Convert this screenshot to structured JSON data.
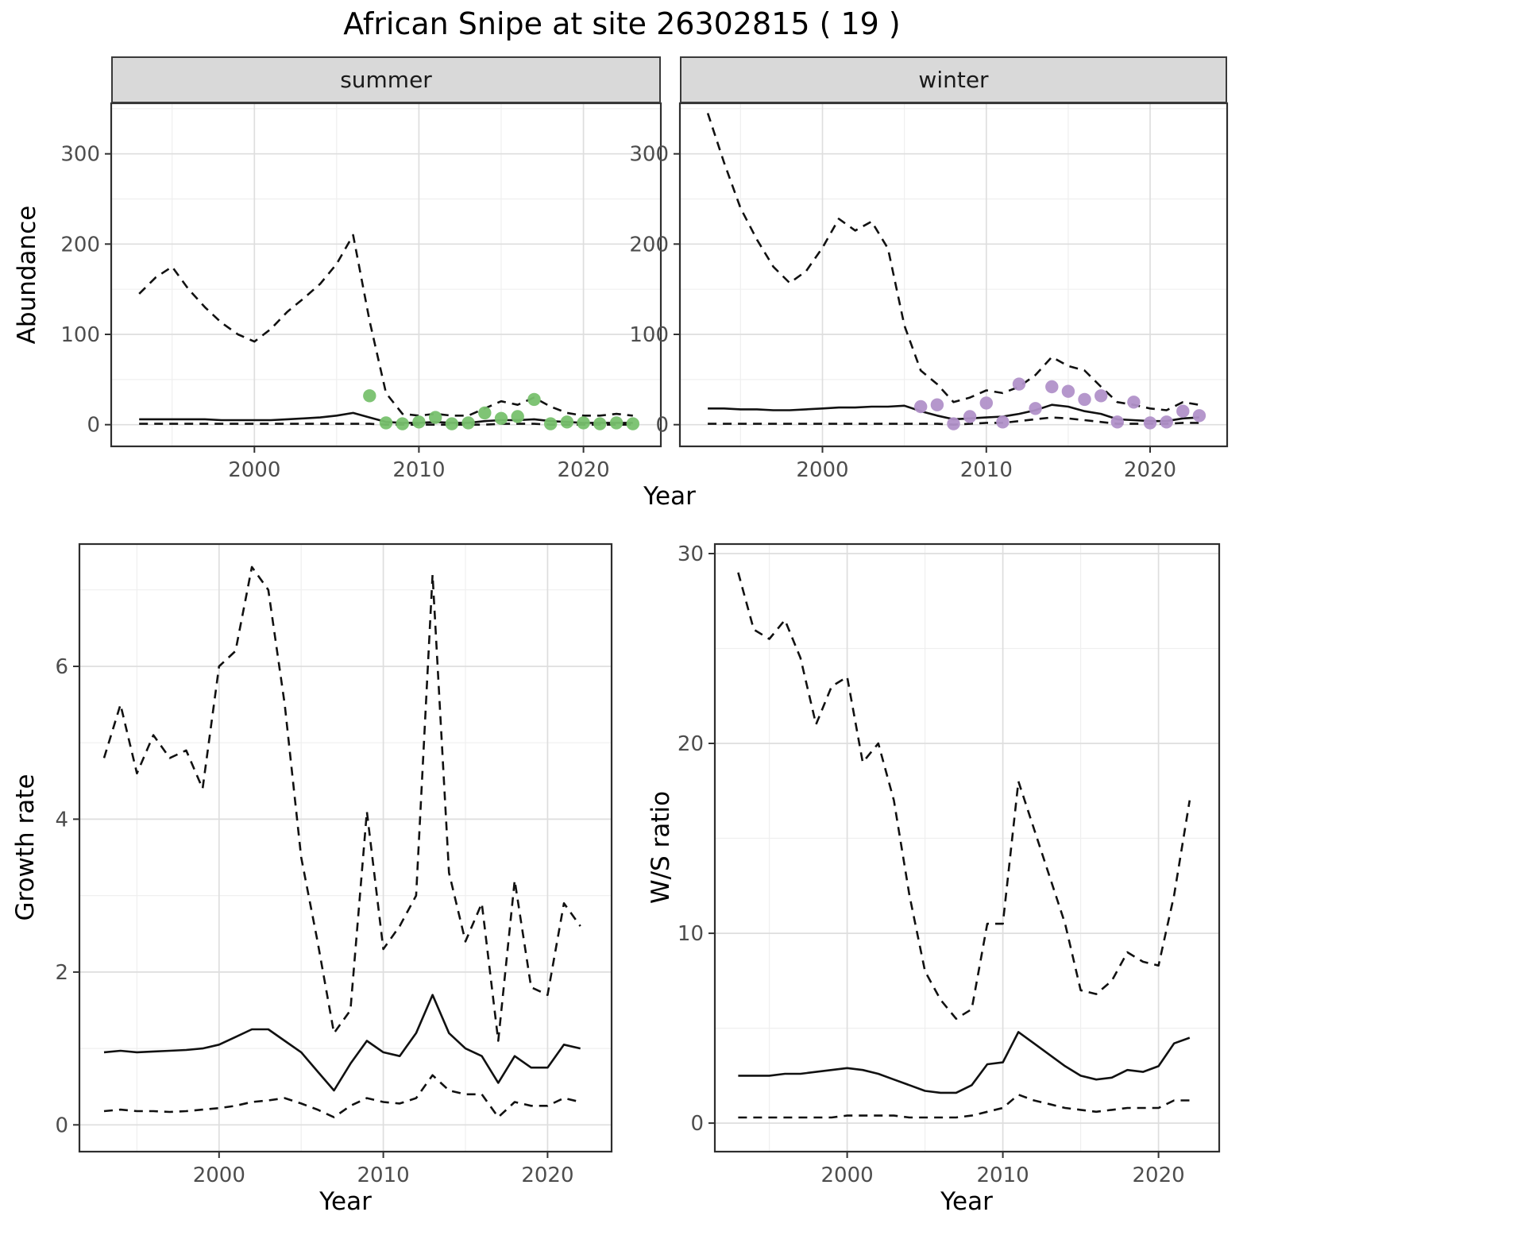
{
  "figure": {
    "title": "African Snipe at site 26302815 ( 19 )",
    "background": "#ffffff",
    "line_color": "#111111",
    "grid_major_color": "#dedede",
    "grid_minor_color": "#efefef",
    "panel_border": "#2e2e2e",
    "strip_bg": "#d9d9d9",
    "tick_color": "#333333"
  },
  "chart_data": [
    {
      "name": "abundance-summer",
      "type": "line",
      "facet_label": "summer",
      "xlabel": "Year",
      "ylabel": "Abundance",
      "xlim": [
        1991.3,
        2024.7
      ],
      "ylim": [
        -24,
        356
      ],
      "xticks": [
        2000,
        2010,
        2020
      ],
      "yticks": [
        0,
        100,
        200,
        300
      ],
      "grid": true,
      "years": [
        1993,
        1994,
        1995,
        1996,
        1997,
        1998,
        1999,
        2000,
        2001,
        2002,
        2003,
        2004,
        2005,
        2006,
        2007,
        2008,
        2009,
        2010,
        2011,
        2012,
        2013,
        2014,
        2015,
        2016,
        2017,
        2018,
        2019,
        2020,
        2021,
        2022,
        2023
      ],
      "series": [
        {
          "name": "upper-ci",
          "style": "dashed",
          "values": [
            145,
            163,
            175,
            150,
            130,
            113,
            100,
            92,
            106,
            125,
            140,
            156,
            178,
            210,
            115,
            35,
            12,
            10,
            12,
            10,
            10,
            18,
            26,
            22,
            30,
            20,
            13,
            10,
            10,
            12,
            10
          ]
        },
        {
          "name": "median",
          "style": "solid",
          "values": [
            6,
            6,
            6,
            6,
            6,
            5,
            5,
            5,
            5,
            6,
            7,
            8,
            10,
            13,
            8,
            3,
            2,
            2,
            3,
            2,
            2,
            4,
            5,
            5,
            6,
            4,
            3,
            2,
            2,
            2,
            2
          ]
        },
        {
          "name": "lower-ci",
          "style": "dashed",
          "values": [
            1,
            1,
            1,
            1,
            1,
            1,
            1,
            1,
            1,
            1,
            1,
            1,
            1,
            1,
            1,
            0,
            0,
            0,
            0,
            0,
            0,
            0,
            1,
            1,
            1,
            0,
            0,
            0,
            0,
            0,
            0
          ]
        }
      ],
      "points": {
        "name": "observed-summer",
        "color": "#78c16e",
        "years": [
          2007,
          2008,
          2009,
          2010,
          2011,
          2012,
          2013,
          2014,
          2015,
          2016,
          2017,
          2018,
          2019,
          2020,
          2021,
          2022,
          2023
        ],
        "values": [
          32,
          2,
          1,
          3,
          8,
          1,
          2,
          13,
          7,
          9,
          28,
          1,
          3,
          2,
          1,
          2,
          1
        ]
      }
    },
    {
      "name": "abundance-winter",
      "type": "line",
      "facet_label": "winter",
      "xlabel": "Year",
      "ylabel": "Abundance",
      "xlim": [
        1991.3,
        2024.7
      ],
      "ylim": [
        -24,
        356
      ],
      "xticks": [
        2000,
        2010,
        2020
      ],
      "yticks": [
        0,
        100,
        200,
        300
      ],
      "grid": true,
      "years": [
        1993,
        1994,
        1995,
        1996,
        1997,
        1998,
        1999,
        2000,
        2001,
        2002,
        2003,
        2004,
        2005,
        2006,
        2007,
        2008,
        2009,
        2010,
        2011,
        2012,
        2013,
        2014,
        2015,
        2016,
        2017,
        2018,
        2019,
        2020,
        2021,
        2022,
        2023
      ],
      "series": [
        {
          "name": "upper-ci",
          "style": "dashed",
          "values": [
            345,
            290,
            240,
            205,
            175,
            157,
            170,
            196,
            228,
            215,
            225,
            195,
            110,
            60,
            45,
            25,
            30,
            38,
            35,
            42,
            55,
            75,
            65,
            60,
            42,
            25,
            22,
            18,
            16,
            25,
            22
          ]
        },
        {
          "name": "median",
          "style": "solid",
          "values": [
            18,
            18,
            17,
            17,
            16,
            16,
            17,
            18,
            19,
            19,
            20,
            20,
            21,
            15,
            10,
            6,
            7,
            8,
            9,
            12,
            16,
            22,
            20,
            15,
            12,
            6,
            5,
            4,
            4,
            7,
            8
          ]
        },
        {
          "name": "lower-ci",
          "style": "dashed",
          "values": [
            1,
            1,
            1,
            1,
            1,
            1,
            1,
            1,
            1,
            1,
            1,
            1,
            1,
            1,
            1,
            0,
            1,
            2,
            2,
            4,
            6,
            8,
            7,
            5,
            3,
            1,
            1,
            1,
            1,
            2,
            2
          ]
        }
      ],
      "points": {
        "name": "observed-winter",
        "color": "#b191c9",
        "years": [
          2006,
          2007,
          2008,
          2009,
          2010,
          2011,
          2012,
          2013,
          2014,
          2015,
          2016,
          2017,
          2018,
          2019,
          2020,
          2021,
          2022,
          2023
        ],
        "values": [
          20,
          22,
          1,
          9,
          24,
          3,
          45,
          18,
          42,
          37,
          28,
          32,
          3,
          25,
          2,
          3,
          15,
          10
        ]
      }
    },
    {
      "name": "growth-rate",
      "type": "line",
      "facet_label": "",
      "xlabel": "Year",
      "ylabel": "Growth rate",
      "xlim": [
        1991.5,
        2023.9
      ],
      "ylim": [
        -0.35,
        7.6
      ],
      "xticks": [
        2000,
        2010,
        2020
      ],
      "yticks": [
        0,
        2,
        4,
        6
      ],
      "grid": true,
      "years": [
        1993,
        1994,
        1995,
        1996,
        1997,
        1998,
        1999,
        2000,
        2001,
        2002,
        2003,
        2004,
        2005,
        2006,
        2007,
        2008,
        2009,
        2010,
        2011,
        2012,
        2013,
        2014,
        2015,
        2016,
        2017,
        2018,
        2019,
        2020,
        2021,
        2022
      ],
      "series": [
        {
          "name": "upper-ci",
          "style": "dashed",
          "values": [
            4.8,
            5.5,
            4.6,
            5.1,
            4.8,
            4.9,
            4.4,
            6.0,
            6.2,
            7.3,
            7.0,
            5.5,
            3.5,
            2.4,
            1.2,
            1.5,
            4.1,
            2.3,
            2.6,
            3.0,
            7.2,
            3.3,
            2.4,
            2.9,
            1.1,
            3.2,
            1.8,
            1.7,
            2.9,
            2.6
          ]
        },
        {
          "name": "median",
          "style": "solid",
          "values": [
            0.95,
            0.97,
            0.95,
            0.96,
            0.97,
            0.98,
            1.0,
            1.05,
            1.15,
            1.25,
            1.25,
            1.1,
            0.95,
            0.7,
            0.45,
            0.8,
            1.1,
            0.95,
            0.9,
            1.2,
            1.7,
            1.2,
            1.0,
            0.9,
            0.55,
            0.9,
            0.75,
            0.75,
            1.05,
            1.0
          ]
        },
        {
          "name": "lower-ci",
          "style": "dashed",
          "values": [
            0.18,
            0.2,
            0.18,
            0.18,
            0.17,
            0.18,
            0.2,
            0.22,
            0.25,
            0.3,
            0.32,
            0.35,
            0.28,
            0.2,
            0.1,
            0.25,
            0.35,
            0.3,
            0.28,
            0.35,
            0.65,
            0.45,
            0.4,
            0.4,
            0.1,
            0.3,
            0.25,
            0.25,
            0.35,
            0.3
          ]
        }
      ],
      "points": null
    },
    {
      "name": "ws-ratio",
      "type": "line",
      "facet_label": "",
      "xlabel": "Year",
      "ylabel": "W/S ratio",
      "xlim": [
        1991.5,
        2023.9
      ],
      "ylim": [
        -1.5,
        30.5
      ],
      "xticks": [
        2000,
        2010,
        2020
      ],
      "yticks": [
        0,
        10,
        20,
        30
      ],
      "grid": true,
      "years": [
        1993,
        1994,
        1995,
        1996,
        1997,
        1998,
        1999,
        2000,
        2001,
        2002,
        2003,
        2004,
        2005,
        2006,
        2007,
        2008,
        2009,
        2010,
        2011,
        2012,
        2013,
        2014,
        2015,
        2016,
        2017,
        2018,
        2019,
        2020,
        2021,
        2022
      ],
      "series": [
        {
          "name": "upper-ci",
          "style": "dashed",
          "values": [
            29,
            26,
            25.5,
            26.5,
            24.5,
            21,
            23,
            23.5,
            19,
            20,
            17,
            12,
            8,
            6.5,
            5.5,
            6,
            10.5,
            10.5,
            18,
            15.5,
            13,
            10.5,
            7,
            6.8,
            7.5,
            9,
            8.5,
            8.3,
            12,
            17
          ]
        },
        {
          "name": "median",
          "style": "solid",
          "values": [
            2.5,
            2.5,
            2.5,
            2.6,
            2.6,
            2.7,
            2.8,
            2.9,
            2.8,
            2.6,
            2.3,
            2.0,
            1.7,
            1.6,
            1.6,
            2.0,
            3.1,
            3.2,
            4.8,
            4.2,
            3.6,
            3.0,
            2.5,
            2.3,
            2.4,
            2.8,
            2.7,
            3.0,
            4.2,
            4.5
          ]
        },
        {
          "name": "lower-ci",
          "style": "dashed",
          "values": [
            0.3,
            0.3,
            0.3,
            0.3,
            0.3,
            0.3,
            0.3,
            0.4,
            0.4,
            0.4,
            0.4,
            0.3,
            0.3,
            0.3,
            0.3,
            0.4,
            0.6,
            0.8,
            1.5,
            1.2,
            1.0,
            0.8,
            0.7,
            0.6,
            0.7,
            0.8,
            0.8,
            0.8,
            1.2,
            1.2
          ]
        }
      ],
      "points": null
    }
  ]
}
